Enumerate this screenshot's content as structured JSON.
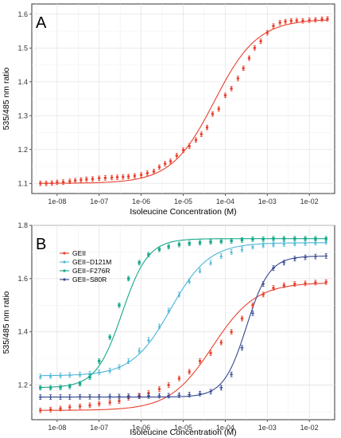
{
  "chart_data": [
    {
      "type": "scatter",
      "panel_label": "A",
      "xlabel": "Isoleucine Concentration (M)",
      "ylabel": "535/485 nm ratio",
      "x_scale": "log",
      "xlim": [
        2.5e-09,
        0.04
      ],
      "ylim": [
        1.07,
        1.63
      ],
      "x_ticks": [
        1e-08,
        1e-07,
        1e-06,
        1e-05,
        0.0001,
        0.001,
        0.01
      ],
      "x_tick_labels": [
        "1e-08",
        "1e-07",
        "1e-06",
        "1e-05",
        "1e-04",
        "1e-03",
        "1e-02"
      ],
      "y_ticks": [
        1.1,
        1.2,
        1.3,
        1.4,
        1.5,
        1.6
      ],
      "y_tick_labels": [
        "1.1",
        "1.2",
        "1.3",
        "1.4",
        "1.5",
        "1.6"
      ],
      "grid": true,
      "legend": "none",
      "series": [
        {
          "color": "#e8412f",
          "x": [
            4e-09,
            5.5e-09,
            7.5e-09,
            1e-08,
            1.4e-08,
            2e-08,
            2.7e-08,
            3.7e-08,
            5e-08,
            7e-08,
            1e-07,
            1.4e-07,
            2e-07,
            2.7e-07,
            3.7e-07,
            5e-07,
            7e-07,
            1e-06,
            1.4e-06,
            2e-06,
            2.7e-06,
            3.7e-06,
            5e-06,
            7e-06,
            1e-05,
            1.4e-05,
            2e-05,
            2.7e-05,
            3.7e-05,
            5e-05,
            7e-05,
            0.0001,
            0.00014,
            0.0002,
            0.00027,
            0.00037,
            0.0005,
            0.0007,
            0.001,
            0.0014,
            0.002,
            0.0027,
            0.0037,
            0.005,
            0.007,
            0.01,
            0.014,
            0.02,
            0.027
          ],
          "y": [
            1.1,
            1.1,
            1.101,
            1.103,
            1.104,
            1.106,
            1.108,
            1.11,
            1.112,
            1.113,
            1.115,
            1.116,
            1.117,
            1.118,
            1.119,
            1.12,
            1.122,
            1.125,
            1.13,
            1.135,
            1.148,
            1.158,
            1.165,
            1.182,
            1.198,
            1.21,
            1.228,
            1.245,
            1.265,
            1.305,
            1.32,
            1.36,
            1.38,
            1.41,
            1.44,
            1.47,
            1.5,
            1.52,
            1.545,
            1.565,
            1.575,
            1.578,
            1.58,
            1.581,
            1.58,
            1.582,
            1.583,
            1.585,
            1.586
          ],
          "fit": {
            "bottom": 1.1,
            "top": 1.585,
            "ec50": 5.5e-05,
            "hill": 0.85
          }
        }
      ]
    },
    {
      "type": "scatter",
      "panel_label": "B",
      "xlabel": "Isoleucine Concentration (M)",
      "ylabel": "535/485 nm ratio",
      "x_scale": "log",
      "xlim": [
        2.5e-09,
        0.04
      ],
      "ylim": [
        1.07,
        1.8
      ],
      "x_ticks": [
        1e-08,
        1e-07,
        1e-06,
        1e-05,
        0.0001,
        0.001,
        0.01
      ],
      "x_tick_labels": [
        "1e-08",
        "1e-07",
        "1e-06",
        "1e-05",
        "1e-04",
        "1e-03",
        "1e-02"
      ],
      "y_ticks": [
        1.2,
        1.4,
        1.6,
        1.8
      ],
      "y_tick_labels": [
        "1.2",
        "1.4",
        "1.6",
        "1.8"
      ],
      "grid": true,
      "legend": "top-left",
      "series": [
        {
          "name": "GEII",
          "color": "#e8412f",
          "marker": "circle",
          "x": [
            4e-09,
            7e-09,
            1.2e-08,
            2e-08,
            3.5e-08,
            6e-08,
            1e-07,
            1.8e-07,
            3e-07,
            5e-07,
            9e-07,
            1.5e-06,
            2.7e-06,
            4.5e-06,
            8e-06,
            1.4e-05,
            2.5e-05,
            4.5e-05,
            8e-05,
            0.00014,
            0.00025,
            0.00045,
            0.0008,
            0.0014,
            0.0025,
            0.0045,
            0.008,
            0.014,
            0.025
          ],
          "y": [
            1.105,
            1.108,
            1.112,
            1.117,
            1.12,
            1.124,
            1.13,
            1.135,
            1.14,
            1.152,
            1.16,
            1.17,
            1.185,
            1.2,
            1.225,
            1.25,
            1.29,
            1.32,
            1.36,
            1.4,
            1.45,
            1.5,
            1.54,
            1.565,
            1.575,
            1.58,
            1.582,
            1.585,
            1.587
          ],
          "fit": {
            "bottom": 1.105,
            "top": 1.585,
            "ec50": 5e-05,
            "hill": 0.85
          }
        },
        {
          "name": "GEII−D121M",
          "color": "#4ab6d8",
          "marker": "triangle",
          "x": [
            4e-09,
            7e-09,
            1.2e-08,
            2e-08,
            3.5e-08,
            6e-08,
            1e-07,
            1.8e-07,
            3e-07,
            5e-07,
            9e-07,
            1.5e-06,
            2.7e-06,
            4.5e-06,
            8e-06,
            1.4e-05,
            2.5e-05,
            4.5e-05,
            8e-05,
            0.00014,
            0.00025,
            0.00045,
            0.0008,
            0.0014,
            0.0025,
            0.0045,
            0.008,
            0.014,
            0.025
          ],
          "y": [
            1.232,
            1.234,
            1.236,
            1.238,
            1.24,
            1.243,
            1.248,
            1.255,
            1.268,
            1.29,
            1.33,
            1.37,
            1.42,
            1.48,
            1.54,
            1.59,
            1.63,
            1.66,
            1.685,
            1.7,
            1.71,
            1.72,
            1.725,
            1.728,
            1.73,
            1.732,
            1.733,
            1.735,
            1.738
          ],
          "fit": {
            "bottom": 1.235,
            "top": 1.735,
            "ec50": 5e-06,
            "hill": 0.95
          }
        },
        {
          "name": "GEII−F276R",
          "color": "#17a88a",
          "marker": "square",
          "x": [
            4e-09,
            7e-09,
            1.2e-08,
            2e-08,
            3.5e-08,
            6e-08,
            1e-07,
            1.8e-07,
            3e-07,
            5e-07,
            9e-07,
            1.5e-06,
            2.7e-06,
            4.5e-06,
            8e-06,
            1.4e-05,
            2.5e-05,
            4.5e-05,
            8e-05,
            0.00014,
            0.00025,
            0.00045,
            0.0008,
            0.0014,
            0.0025,
            0.0045,
            0.008,
            0.014,
            0.025
          ],
          "y": [
            1.19,
            1.19,
            1.191,
            1.195,
            1.205,
            1.23,
            1.29,
            1.38,
            1.5,
            1.6,
            1.66,
            1.69,
            1.71,
            1.72,
            1.728,
            1.732,
            1.735,
            1.738,
            1.74,
            1.742,
            1.745,
            1.748,
            1.748,
            1.75,
            1.75,
            1.75,
            1.75,
            1.75,
            1.75
          ],
          "fit": {
            "bottom": 1.19,
            "top": 1.75,
            "ec50": 3.5e-07,
            "hill": 1.4
          }
        },
        {
          "name": "GEII−S80R",
          "color": "#35478f",
          "marker": "cross",
          "x": [
            4e-09,
            7e-09,
            1.2e-08,
            2e-08,
            3.5e-08,
            6e-08,
            1e-07,
            1.8e-07,
            3e-07,
            5e-07,
            9e-07,
            1.5e-06,
            2.7e-06,
            4.5e-06,
            8e-06,
            1.4e-05,
            2.5e-05,
            4.5e-05,
            8e-05,
            0.00014,
            0.00025,
            0.00045,
            0.0008,
            0.0014,
            0.0025,
            0.0045,
            0.008,
            0.014,
            0.025
          ],
          "y": [
            1.155,
            1.155,
            1.155,
            1.155,
            1.156,
            1.156,
            1.156,
            1.157,
            1.157,
            1.158,
            1.158,
            1.159,
            1.16,
            1.16,
            1.162,
            1.164,
            1.168,
            1.175,
            1.19,
            1.24,
            1.34,
            1.47,
            1.58,
            1.64,
            1.66,
            1.675,
            1.68,
            1.683,
            1.685
          ],
          "fit": {
            "bottom": 1.155,
            "top": 1.685,
            "ec50": 0.00032,
            "hill": 1.6
          }
        }
      ]
    }
  ]
}
